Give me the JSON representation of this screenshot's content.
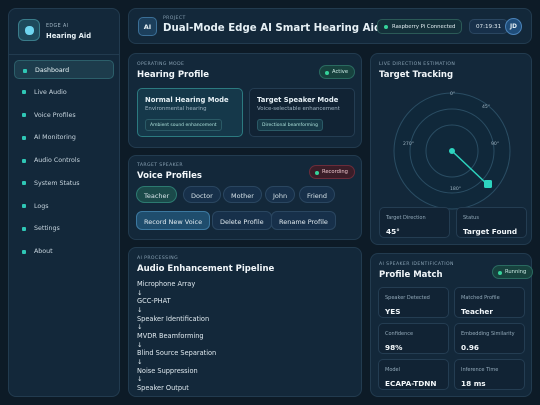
{
  "sidebar": {
    "brand_small": "EDGE AI",
    "brand": "Hearing Aid",
    "nav": [
      "Dashboard",
      "Live Audio",
      "Voice Profiles",
      "AI Monitoring",
      "Audio Controls",
      "System Status",
      "Logs",
      "Settings",
      "About"
    ]
  },
  "header": {
    "icon": "AI",
    "label": "PROJECT",
    "title": "Dual-Mode Edge AI Smart Hearing Aid",
    "status": "Raspberry Pi Connected",
    "time": "07:19:31",
    "avatar": "JD"
  },
  "hearing_profile": {
    "label": "OPERATING MODE",
    "title": "Hearing Profile",
    "badge": "Active",
    "modes": [
      {
        "name": "Normal Hearing Mode",
        "desc": "Environmental hearing",
        "tag": "Ambient sound enhancement"
      },
      {
        "name": "Target Speaker Mode",
        "desc": "Voice-selectable enhancement",
        "tag": "Directional beamforming"
      }
    ]
  },
  "voice_profiles": {
    "label": "TARGET SPEAKER",
    "title": "Voice Profiles",
    "badge": "Recording",
    "profiles": [
      "Teacher",
      "Doctor",
      "Mother",
      "John",
      "Friend"
    ],
    "actions": [
      "Record New Voice",
      "Delete Profile",
      "Rename Profile"
    ]
  },
  "pipeline": {
    "label": "AI PROCESSING",
    "title": "Audio Enhancement Pipeline",
    "arrow": "↓",
    "steps": [
      "Microphone Array",
      "GCC-PHAT",
      "Speaker Identification",
      "MVDR Beamforming",
      "Blind Source Separation",
      "Noise Suppression",
      "Speaker Output"
    ]
  },
  "tracking": {
    "label": "LIVE DIRECTION ESTIMATION",
    "title": "Target Tracking",
    "angles": [
      "0°",
      "45°",
      "90°",
      "180°",
      "270°"
    ],
    "stats": [
      {
        "label": "Target Direction",
        "value": "45°"
      },
      {
        "label": "Status",
        "value": "Target Found"
      }
    ]
  },
  "profile_match": {
    "label": "AI SPEAKER IDENTIFICATION",
    "title": "Profile Match",
    "badge": "Running",
    "stats": [
      {
        "label": "Speaker Detected",
        "value": "YES"
      },
      {
        "label": "Matched Profile",
        "value": "Teacher"
      },
      {
        "label": "Confidence",
        "value": "98%"
      },
      {
        "label": "Embedding Similarity",
        "value": "0.96"
      },
      {
        "label": "Model",
        "value": "ECAPA-TDNN"
      },
      {
        "label": "Inference Time",
        "value": "18 ms"
      }
    ]
  }
}
